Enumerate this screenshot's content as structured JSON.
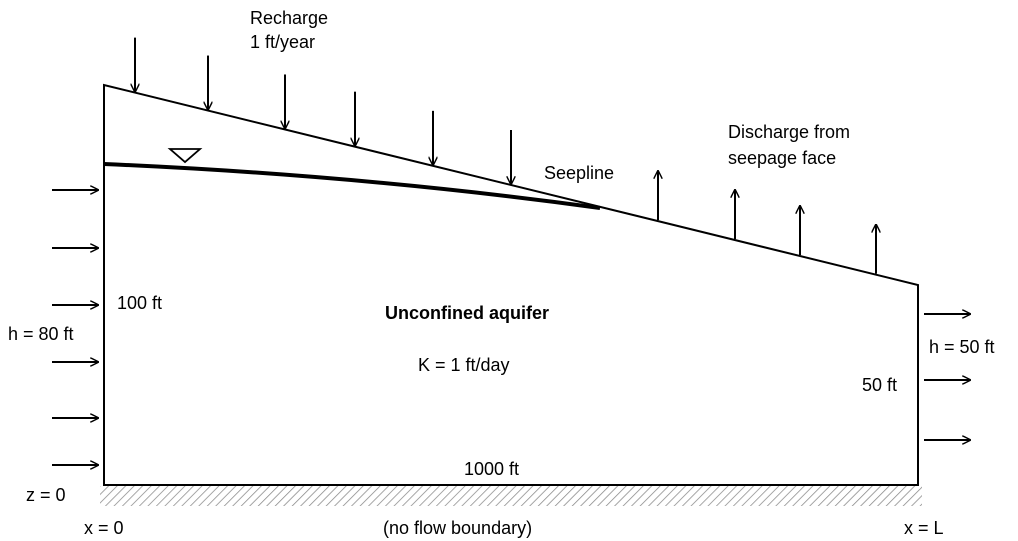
{
  "recharge": {
    "title": "Recharge",
    "rate": "1 ft/year"
  },
  "discharge": {
    "line1": "Discharge from",
    "line2": "seepage face"
  },
  "seepline": "Seepline",
  "aquifer": {
    "title": "Unconfined aquifer",
    "conductivity": "K = 1 ft/day"
  },
  "left": {
    "height": "100 ft",
    "head": "h = 80 ft",
    "datum": "z = 0",
    "position": "x = 0"
  },
  "right": {
    "height": "50 ft",
    "head": "h = 50 ft",
    "position": "x = L"
  },
  "bottom": {
    "length": "1000 ft",
    "boundary": "(no flow boundary)"
  }
}
